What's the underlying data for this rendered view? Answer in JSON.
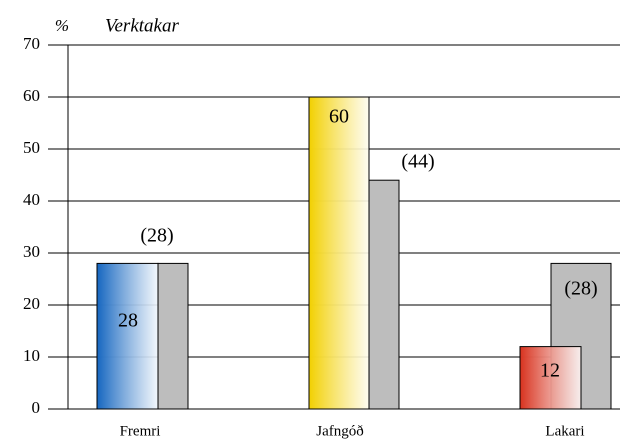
{
  "chart_data": {
    "type": "bar",
    "title": "Verktakar",
    "y_unit": "%",
    "categories": [
      "Fremri",
      "Jafngóð",
      "Lakari"
    ],
    "series": [
      {
        "colors": [
          "#1566c0",
          "#f2d000",
          "#d8321e"
        ],
        "values": [
          28,
          60,
          12
        ]
      },
      {
        "color": "#bdbdbd",
        "values": [
          28,
          44,
          28
        ],
        "value_labels": [
          "(28)",
          "(44)",
          "(28)"
        ]
      }
    ],
    "ylim": [
      0,
      70
    ],
    "yticks": [
      0,
      10,
      20,
      30,
      40,
      50,
      60,
      70
    ],
    "grid": true
  }
}
